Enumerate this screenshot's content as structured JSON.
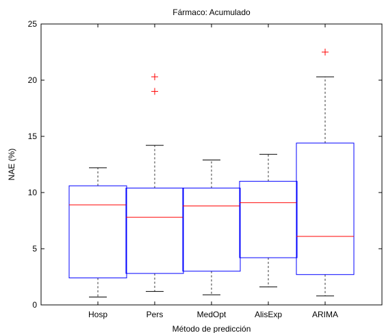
{
  "chart_data": {
    "type": "box",
    "title": "Fármaco: Acumulado",
    "xlabel": "Método de predicción",
    "ylabel": "NAE (%)",
    "ylim": [
      0,
      25
    ],
    "yticks": [
      0,
      5,
      10,
      15,
      20,
      25
    ],
    "categories": [
      "Hosp",
      "Pers",
      "MedOpt",
      "AlisExp",
      "ARIMA"
    ],
    "boxes": [
      {
        "category": "Hosp",
        "whisker_low": 0.7,
        "q1": 2.4,
        "median": 8.9,
        "q3": 10.6,
        "whisker_high": 12.2,
        "outliers": []
      },
      {
        "category": "Pers",
        "whisker_low": 1.2,
        "q1": 2.8,
        "median": 7.8,
        "q3": 10.4,
        "whisker_high": 14.2,
        "outliers": [
          19.0,
          20.3
        ]
      },
      {
        "category": "MedOpt",
        "whisker_low": 0.9,
        "q1": 3.0,
        "median": 8.8,
        "q3": 10.4,
        "whisker_high": 12.9,
        "outliers": []
      },
      {
        "category": "AlisExp",
        "whisker_low": 1.6,
        "q1": 4.2,
        "median": 9.1,
        "q3": 11.0,
        "whisker_high": 13.4,
        "outliers": []
      },
      {
        "category": "ARIMA",
        "whisker_low": 0.8,
        "q1": 2.7,
        "median": 6.1,
        "q3": 14.4,
        "whisker_high": 20.3,
        "outliers": [
          22.5
        ]
      }
    ],
    "grid": false,
    "colors": {
      "box": "#0000ff",
      "median": "#ff0000",
      "whisker": "#000000",
      "outlier": "#ff0000",
      "axis": "#000000"
    }
  }
}
